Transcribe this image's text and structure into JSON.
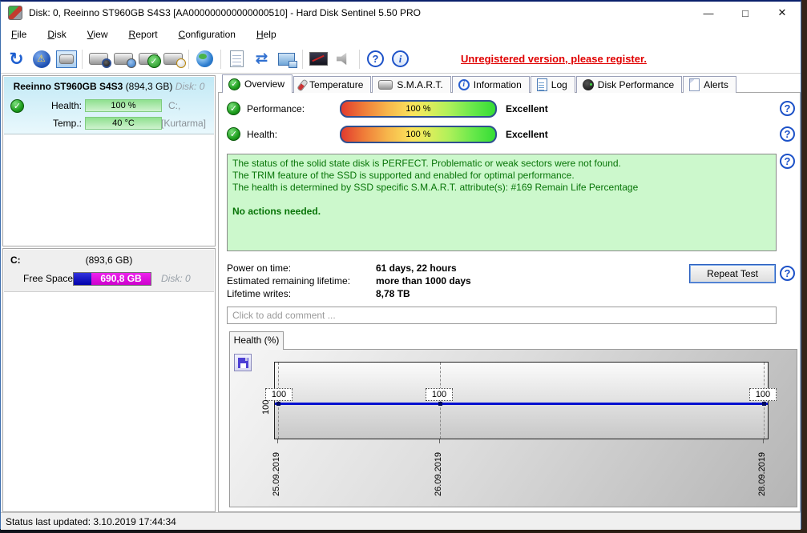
{
  "window": {
    "title": "Disk: 0, Reeinno ST960GB S4S3 [AA000000000000000510]  -  Hard Disk Sentinel 5.50 PRO",
    "controls": {
      "minimize": "—",
      "maximize": "□",
      "close": "✕"
    }
  },
  "menu": {
    "items": [
      "File",
      "Disk",
      "View",
      "Report",
      "Configuration",
      "Help"
    ]
  },
  "toolbar": {
    "icons": [
      "refresh-icon",
      "alert-icon",
      "disk-monitor-icon",
      "disk-gauge-icon",
      "disk-clock-icon",
      "disk-check-icon",
      "disk-search-icon",
      "network-globe-icon",
      "report-icon",
      "send-report-icon",
      "network-computer-icon",
      "display-config-icon",
      "sound-icon",
      "help-icon",
      "info-icon"
    ],
    "register_notice": "Unregistered version, please register."
  },
  "sidebar": {
    "disk": {
      "name": "Reeinno ST960GB S4S3",
      "size": "(894,3 GB)",
      "disk_label": "Disk: 0",
      "health_label": "Health:",
      "health_value": "100 %",
      "temp_label": "Temp.:",
      "temp_value": "40 °C",
      "partition_letter": "C:,",
      "partition_name": "[Kurtarma]"
    },
    "partition": {
      "name": "C:",
      "size": "(893,6 GB)",
      "free_space_label": "Free Space",
      "free_space_value": "690,8 GB",
      "disk_label": "Disk: 0",
      "used_percent": 23
    }
  },
  "tabs": [
    {
      "label": "Overview",
      "active": true
    },
    {
      "label": "Temperature"
    },
    {
      "label": "S.M.A.R.T."
    },
    {
      "label": "Information"
    },
    {
      "label": "Log"
    },
    {
      "label": "Disk Performance"
    },
    {
      "label": "Alerts"
    }
  ],
  "overview": {
    "performance_label": "Performance:",
    "performance_value": "100 %",
    "performance_rating": "Excellent",
    "health_label": "Health:",
    "health_value": "100 %",
    "health_rating": "Excellent",
    "status_lines": [
      "The status of the solid state disk is PERFECT. Problematic or weak sectors were not found.",
      "The TRIM feature of the SSD is supported and enabled for optimal performance.",
      "The health is determined by SSD specific S.M.A.R.T. attribute(s):  #169 Remain Life Percentage"
    ],
    "no_action": "No actions needed.",
    "info_rows": [
      {
        "label": "Power on time:",
        "value": "61 days, 22 hours"
      },
      {
        "label": "Estimated remaining lifetime:",
        "value": "more than 1000 days"
      },
      {
        "label": "Lifetime writes:",
        "value": "8,78 TB"
      }
    ],
    "repeat_test_label": "Repeat Test",
    "comment_placeholder": "Click to add comment ..."
  },
  "chart_data": {
    "type": "line",
    "title": "Health (%)",
    "x": [
      "25.09.2019",
      "26.09.2019",
      "28.09.2019"
    ],
    "values": [
      100,
      100,
      100
    ],
    "point_labels": [
      "100",
      "100",
      "100"
    ],
    "ytick": "100",
    "ylim_shown_tick": 100,
    "line_color": "#0010d0",
    "grid": "dashed-vertical",
    "legend": false
  },
  "status_bar": {
    "text": "Status last updated: 3.10.2019 17:44:34"
  },
  "colors": {
    "accent_blue": "#1d52c8",
    "register_red": "#e00000",
    "health_bar_green": "#9de89d",
    "free_space_magenta": "#dd00dd",
    "used_space_blue": "#1111cc",
    "status_box_bg": "#ccf8cc",
    "status_box_text": "#077407"
  }
}
